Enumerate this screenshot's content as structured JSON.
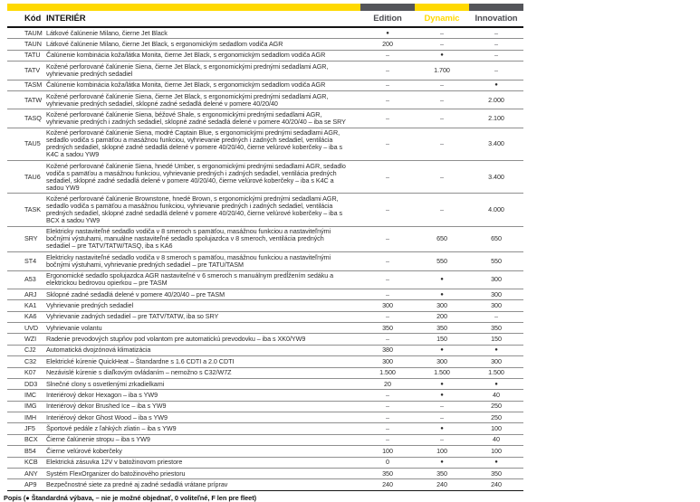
{
  "header": {
    "code_label": "Kód",
    "section_label": "INTERIÉR",
    "columns": [
      "Edition",
      "Dynamic",
      "Innovation"
    ]
  },
  "colors": {
    "brand_yellow": "#FFD900",
    "dark_gray": "#54555A"
  },
  "symbols": {
    "standard_dot": "●",
    "not_available_dash": "–"
  },
  "rows": [
    {
      "code": "TAUM",
      "desc": "Látkové čalúnenie Milano, čierne Jet Black",
      "values": [
        "●",
        "–",
        "–"
      ]
    },
    {
      "code": "TAUN",
      "desc": "Látkové čalúnenie Milano, čierne Jet Black, s ergonomickým sedadlom vodiča AGR",
      "values": [
        "200",
        "–",
        "–"
      ]
    },
    {
      "code": "TATU",
      "desc": "Čalúnenie kombinácia koža/látka Monita, čierne Jet Black, s ergonomickým sedadlom vodiča AGR",
      "values": [
        "–",
        "●",
        "–"
      ]
    },
    {
      "code": "TATV",
      "desc": "Kožené perforované čalúnenie Siena, čierne Jet Black, s ergonomickými prednými sedadlami AGR, vyhrievanie predných sedadiel",
      "values": [
        "–",
        "1.700",
        "–"
      ]
    },
    {
      "code": "TASM",
      "desc": "Čalúnenie kombinácia koža/látka Monita, čierne Jet Black, s ergonomickým sedadlom vodiča AGR",
      "values": [
        "–",
        "–",
        "●"
      ]
    },
    {
      "code": "TATW",
      "desc": "Kožené perforované čalúnenie Siena, čierne Jet Black, s ergonomickými prednými sedadlami AGR, vyhrievanie predných sedadiel, sklopné zadné sedadlá delené v pomere 40/20/40",
      "values": [
        "–",
        "–",
        "2.000"
      ]
    },
    {
      "code": "TASQ",
      "desc": "Kožené perforované čalúnenie Siena, béžové Shale, s ergonomickými prednými sedadlami AGR, vyhrievanie predných i zadných sedadiel, sklopné zadné sedadlá delené v pomere 40/20/40 – iba se SRY",
      "values": [
        "–",
        "–",
        "2.100"
      ]
    },
    {
      "code": "TAU5",
      "desc": "Kožené perforované čalúnenie Siena, modré Captain Blue, s ergonomickými prednými sedadlami AGR, sedadlo vodiča s pamäťou a masážnou funkciou, vyhrievanie predných i zadných sedadiel, ventilácia predných sedadiel, sklopné zadné sedadlá delené v pomere 40/20/40, čierne velúrové koberčeky – iba s K4C a sadou YW9",
      "values": [
        "–",
        "–",
        "3.400"
      ]
    },
    {
      "code": "TAU6",
      "desc": "Kožené perforované čalúnenie Siena, hnedé Umber, s ergonomickými prednými sedadlami AGR, sedadlo vodiča s pamäťou a masážnou funkciou, vyhrievanie predných i zadných sedadiel, ventilácia predných sedadiel, sklopné zadné sedadlá delené v pomere 40/20/40, čierne velúrové koberčeky – iba s K4C a sadou YW9",
      "values": [
        "–",
        "–",
        "3.400"
      ]
    },
    {
      "code": "TASK",
      "desc": "Kožené perforované čalúnenie Brownstone, hnedé Brown, s ergonomickými prednými sedadlami AGR, sedadlo vodiča s pamäťou a masážnou funkciou, vyhrievanie predných i zadných sedadiel, ventilácia predných sedadiel, sklopné zadné sedadlá delené v pomere 40/20/40, čierne velúrové koberčeky – iba s BCX a sadou YW9",
      "values": [
        "–",
        "–",
        "4.000"
      ]
    },
    {
      "code": "SRY",
      "desc": "Elektricky nastaviteľné sedadlo vodiča v 8 smeroch s pamäťou, masážnou funkciou a nastaviteľnými bočnými výstuhami, manuálne nastaviteľné sedadlo spolujazdca v 8 smeroch, ventilácia predných sedadiel – pre TATV/TATW/TASQ, iba s KA6",
      "values": [
        "–",
        "650",
        "650"
      ]
    },
    {
      "code": "ST4",
      "desc": "Elektricky nastaviteľné sedadlo vodiča v 8 smeroch s pamäťou, masážnou funkciou a nastaviteľnými bočnými výstuhami, vyhrievanie predných sedadiel – pre TATU/TASM",
      "values": [
        "–",
        "550",
        "550"
      ]
    },
    {
      "code": "A53",
      "desc": "Ergonomické sedadlo spolujazdca AGR nastaviteľné v 6 smeroch s manuálnym predĺžením sedáku a elektrickou bedrovou opierkou – pre TASM",
      "values": [
        "–",
        "●",
        "300"
      ]
    },
    {
      "code": "ARJ",
      "desc": "Sklopné zadné sedadlá delené v pomere 40/20/40 – pre TASM",
      "values": [
        "–",
        "●",
        "300"
      ]
    },
    {
      "code": "KA1",
      "desc": "Vyhrievanie predných sedadiel",
      "values": [
        "300",
        "300",
        "300"
      ]
    },
    {
      "code": "KA6",
      "desc": "Vyhrievanie zadných sedadiel – pre TATV/TATW, iba so SRY",
      "values": [
        "–",
        "200",
        "–"
      ]
    },
    {
      "code": "UVD",
      "desc": "Vyhrievanie volantu",
      "values": [
        "350",
        "350",
        "350"
      ]
    },
    {
      "code": "WZI",
      "desc": "Radenie prevodových stupňov pod volantom pre automatickú prevodovku – iba s XK0/YW9",
      "values": [
        "–",
        "150",
        "150"
      ]
    },
    {
      "code": "CJ2",
      "desc": "Automatická dvojzónová klimatizácia",
      "values": [
        "380",
        "●",
        "●"
      ]
    },
    {
      "code": "C32",
      "desc": "Elektrické kúrenie QuickHeat – Štandardne s 1.6 CDTI a 2.0 CDTI",
      "values": [
        "300",
        "300",
        "300"
      ]
    },
    {
      "code": "K07",
      "desc": "Nezávislé kúrenie s diaľkovým ovládaním – nemožno s C32/W7Z",
      "values": [
        "1.500",
        "1.500",
        "1.500"
      ]
    },
    {
      "code": "DD3",
      "desc": "Slnečné clony s osvetlenými zrkadielkami",
      "values": [
        "20",
        "●",
        "●"
      ]
    },
    {
      "code": "IMC",
      "desc": "Interiérový dekor Hexagon – iba s YW9",
      "values": [
        "–",
        "●",
        "40"
      ]
    },
    {
      "code": "IMG",
      "desc": "Interiérový dekor Brushed Ice – iba s YW9",
      "values": [
        "–",
        "–",
        "250"
      ]
    },
    {
      "code": "IMH",
      "desc": "Interiérový dekor Ghost Wood – iba s YW9",
      "values": [
        "–",
        "–",
        "250"
      ]
    },
    {
      "code": "JF5",
      "desc": "Športové pedále z ľahkých zliatin – iba s YW9",
      "values": [
        "–",
        "●",
        "100"
      ]
    },
    {
      "code": "BCX",
      "desc": "Čierne čalúnenie stropu – iba s YW9",
      "values": [
        "–",
        "–",
        "40"
      ]
    },
    {
      "code": "B54",
      "desc": "Čierne velúrové koberčeky",
      "values": [
        "100",
        "100",
        "100"
      ]
    },
    {
      "code": "KCB",
      "desc": "Elektrická zásuvka 12V v batožinovom priestore",
      "values": [
        "0",
        "●",
        "●"
      ]
    },
    {
      "code": "ANY",
      "desc": "Systém FlexOrganizer do batožinového priestoru",
      "values": [
        "350",
        "350",
        "350"
      ]
    },
    {
      "code": "AP9",
      "desc": "Bezpečnostné siete za predné aj zadné sedadlá vrátane príprav",
      "values": [
        "240",
        "240",
        "240"
      ]
    }
  ],
  "legend": "Popis (● Štandardná výbava, – nie je možné objednať, 0 voliteľné, F len pre fleet)"
}
